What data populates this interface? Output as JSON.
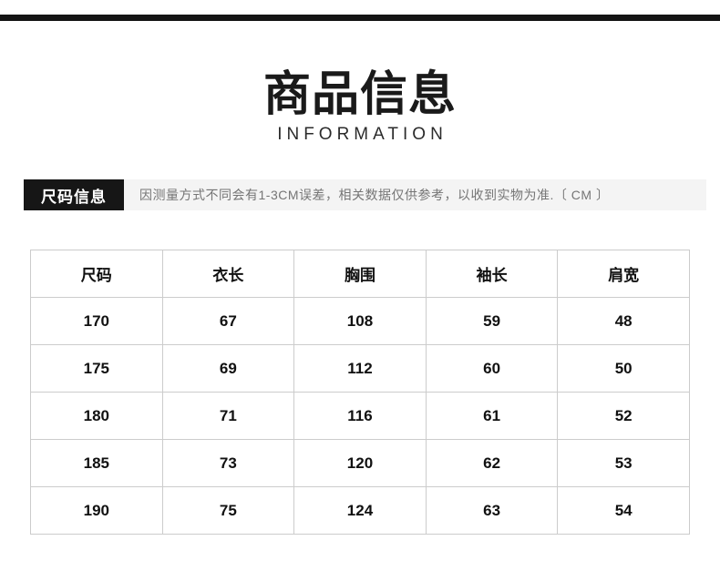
{
  "page": {
    "title": "商品信息",
    "subtitle": "INFORMATION"
  },
  "size_info": {
    "label": "尺码信息",
    "note": "因测量方式不同会有1-3CM误差，相关数据仅供参考，以收到实物为准.〔 CM 〕"
  },
  "size_table": {
    "headers": [
      "尺码",
      "衣长",
      "胸围",
      "袖长",
      "肩宽"
    ],
    "rows": [
      [
        "170",
        "67",
        "108",
        "59",
        "48"
      ],
      [
        "175",
        "69",
        "112",
        "60",
        "50"
      ],
      [
        "180",
        "71",
        "116",
        "61",
        "52"
      ],
      [
        "185",
        "73",
        "120",
        "62",
        "53"
      ],
      [
        "190",
        "75",
        "124",
        "63",
        "54"
      ]
    ]
  },
  "colors": {
    "accent_black": "#161616",
    "note_bar_bg": "#f4f4f4",
    "note_text": "#757575",
    "table_border": "#cccccc"
  }
}
